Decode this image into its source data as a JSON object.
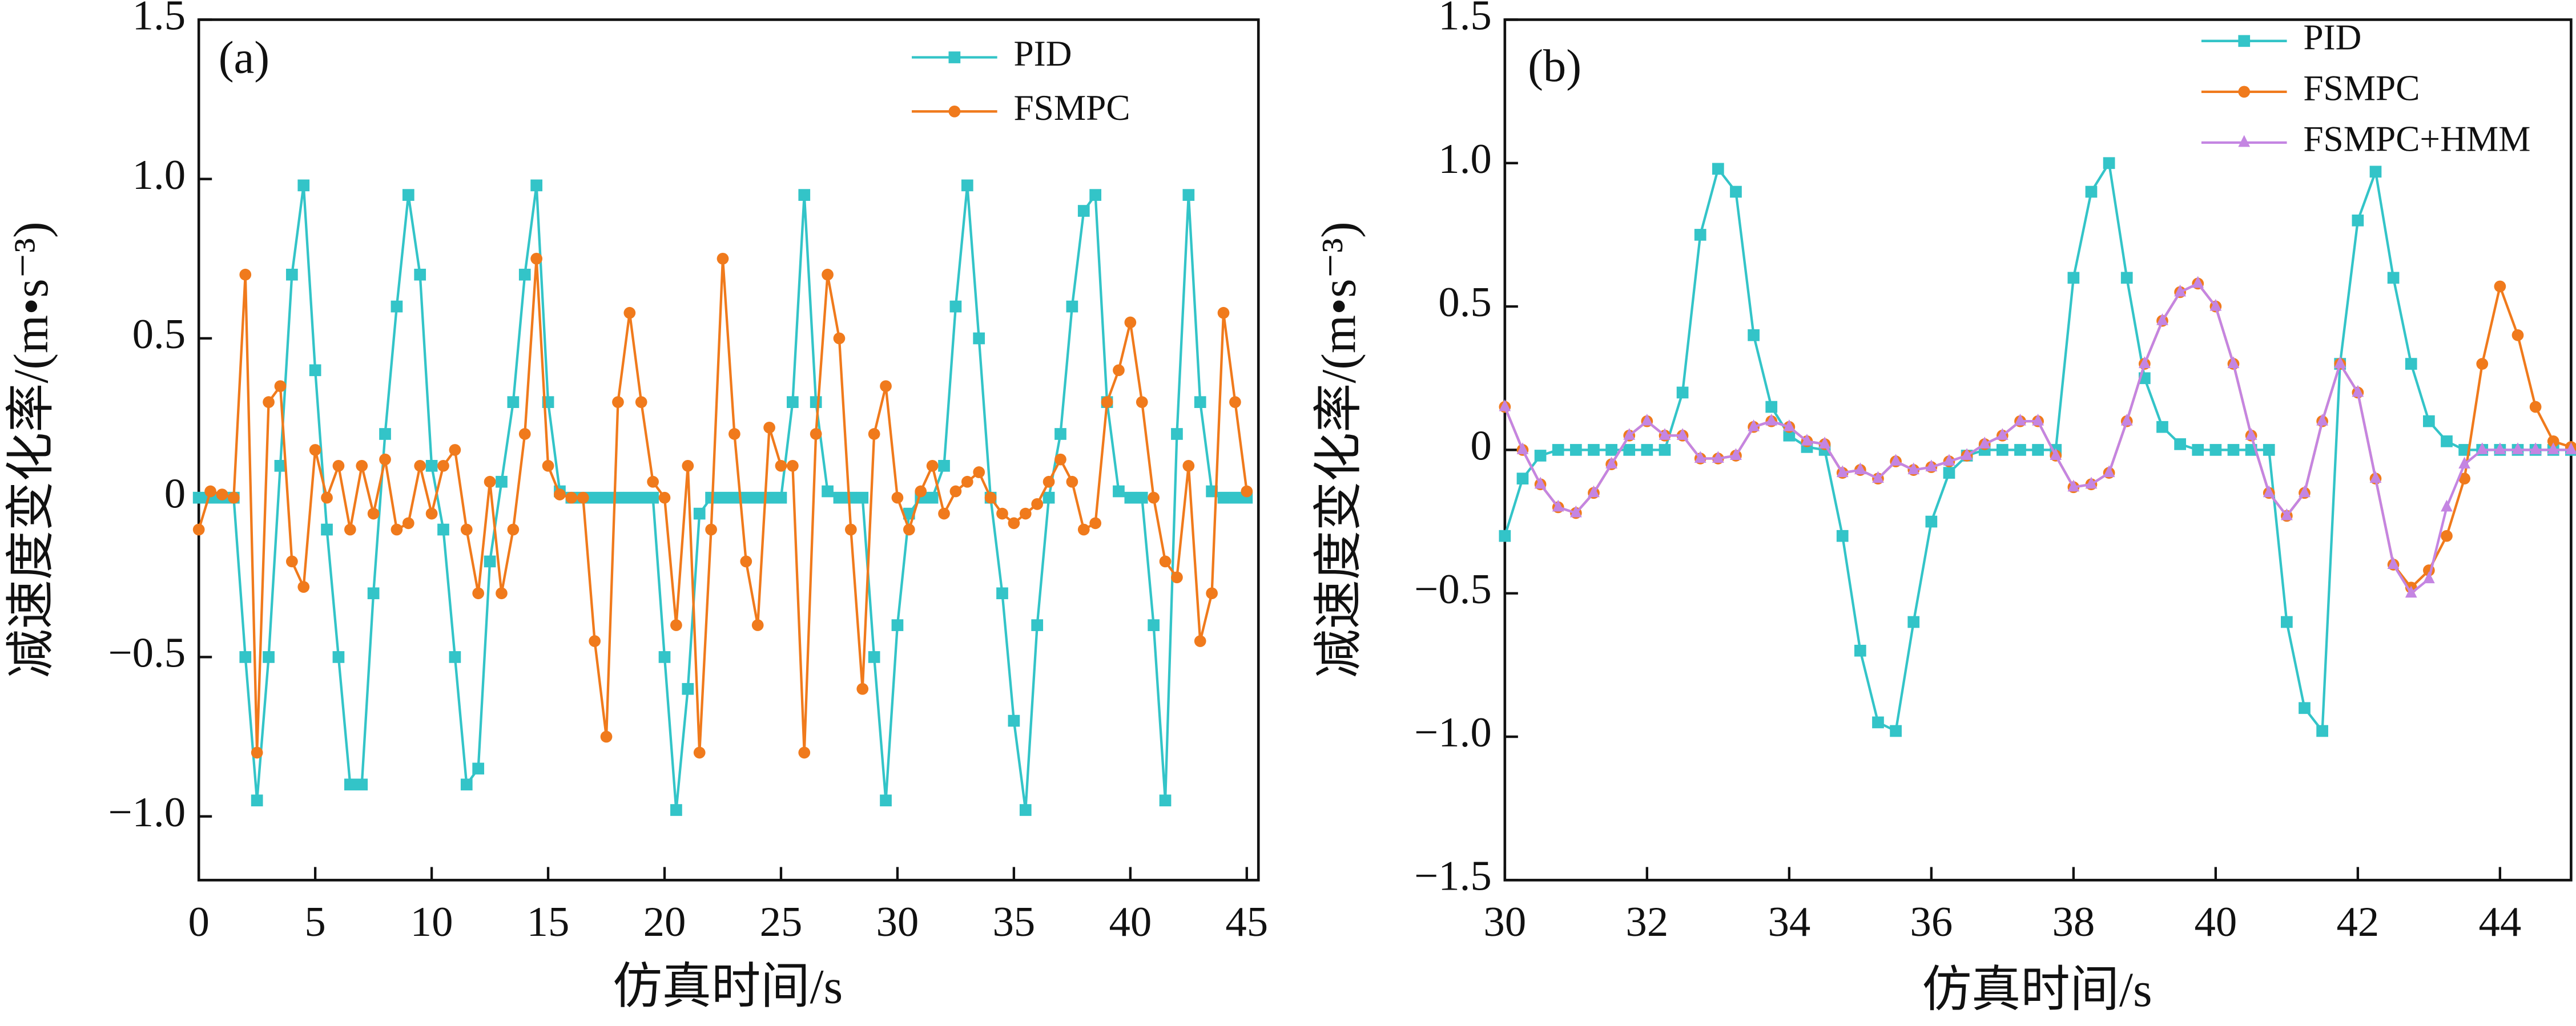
{
  "chart_data": [
    {
      "type": "line",
      "annotation": "(a)",
      "x_label": "仿真时间/s",
      "y_label": "减速度变化率/(m•s⁻³)",
      "x": [
        0,
        0.5,
        1,
        1.5,
        2,
        2.5,
        3,
        3.5,
        4,
        4.5,
        5,
        5.5,
        6,
        6.5,
        7,
        7.5,
        8,
        8.5,
        9,
        9.5,
        10,
        10.5,
        11,
        11.5,
        12,
        12.5,
        13,
        13.5,
        14,
        14.5,
        15,
        15.5,
        16,
        16.5,
        17,
        17.5,
        18,
        18.5,
        19,
        19.5,
        20,
        20.5,
        21,
        21.5,
        22,
        22.5,
        23,
        23.5,
        24,
        24.5,
        25,
        25.5,
        26,
        26.5,
        27,
        27.5,
        28,
        28.5,
        29,
        29.5,
        30,
        30.5,
        31,
        31.5,
        32,
        32.5,
        33,
        33.5,
        34,
        34.5,
        35,
        35.5,
        36,
        36.5,
        37,
        37.5,
        38,
        38.5,
        39,
        39.5,
        40,
        40.5,
        41,
        41.5,
        42,
        42.5,
        43,
        43.5,
        44,
        44.5,
        45
      ],
      "series": [
        {
          "name": "PID",
          "color": "#33c4c8",
          "marker": "square",
          "values": [
            0,
            0,
            0,
            0,
            -0.5,
            -0.95,
            -0.5,
            0.1,
            0.7,
            0.98,
            0.4,
            -0.1,
            -0.5,
            -0.9,
            -0.9,
            -0.3,
            0.2,
            0.6,
            0.95,
            0.7,
            0.1,
            -0.1,
            -0.5,
            -0.9,
            -0.85,
            -0.2,
            0.05,
            0.3,
            0.7,
            0.98,
            0.3,
            0.02,
            0,
            0,
            0,
            0,
            0,
            0,
            0,
            0,
            -0.5,
            -0.98,
            -0.6,
            -0.05,
            0,
            0,
            0,
            0,
            0,
            0,
            0,
            0.3,
            0.95,
            0.3,
            0.02,
            0,
            0,
            0,
            -0.5,
            -0.95,
            -0.4,
            -0.05,
            0,
            0,
            0.1,
            0.6,
            0.98,
            0.5,
            0,
            -0.3,
            -0.7,
            -0.98,
            -0.4,
            0,
            0.2,
            0.6,
            0.9,
            0.95,
            0.3,
            0.02,
            0,
            0,
            -0.4,
            -0.95,
            0.2,
            0.95,
            0.3,
            0.02,
            0,
            0,
            0
          ]
        },
        {
          "name": "FSMPC",
          "color": "#f07a1c",
          "marker": "circle",
          "values": [
            -0.1,
            0.02,
            0.01,
            0,
            0.7,
            -0.8,
            0.3,
            0.35,
            -0.2,
            -0.28,
            0.15,
            0,
            0.1,
            -0.1,
            0.1,
            -0.05,
            0.12,
            -0.1,
            -0.08,
            0.1,
            -0.05,
            0.1,
            0.15,
            -0.1,
            -0.3,
            0.05,
            -0.3,
            -0.1,
            0.2,
            0.75,
            0.1,
            0.01,
            0,
            0,
            -0.45,
            -0.75,
            0.3,
            0.58,
            0.3,
            0.05,
            0,
            -0.4,
            0.1,
            -0.8,
            -0.1,
            0.75,
            0.2,
            -0.2,
            -0.4,
            0.22,
            0.1,
            0.1,
            -0.8,
            0.2,
            0.7,
            0.5,
            -0.1,
            -0.6,
            0.2,
            0.35,
            0,
            -0.1,
            0.02,
            0.1,
            -0.05,
            0.02,
            0.05,
            0.08,
            0,
            -0.05,
            -0.08,
            -0.05,
            -0.02,
            0.05,
            0.12,
            0.05,
            -0.1,
            -0.08,
            0.3,
            0.4,
            0.55,
            0.3,
            0,
            -0.2,
            -0.25,
            0.1,
            -0.45,
            -0.3,
            0.58,
            0.3,
            0.02
          ]
        }
      ],
      "xlim": [
        0,
        45.5
      ],
      "xticks": [
        0,
        5,
        10,
        15,
        20,
        25,
        30,
        35,
        40,
        45
      ],
      "ylim": [
        -1.2,
        1.5
      ],
      "yticks": [
        {
          "value": -1,
          "label": "−1.0"
        },
        {
          "value": -0.5,
          "label": "−0.5"
        },
        0,
        0.5,
        {
          "value": 1,
          "label": "1.0"
        },
        1.5
      ]
    },
    {
      "type": "line",
      "annotation": "(b)",
      "x_label": "仿真时间/s",
      "y_label": "减速度变化率/(m•s⁻³)",
      "x": [
        30,
        30.25,
        30.5,
        30.75,
        31,
        31.25,
        31.5,
        31.75,
        32,
        32.25,
        32.5,
        32.75,
        33,
        33.25,
        33.5,
        33.75,
        34,
        34.25,
        34.5,
        34.75,
        35,
        35.25,
        35.5,
        35.75,
        36,
        36.25,
        36.5,
        36.75,
        37,
        37.25,
        37.5,
        37.75,
        38,
        38.25,
        38.5,
        38.75,
        39,
        39.25,
        39.5,
        39.75,
        40,
        40.25,
        40.5,
        40.75,
        41,
        41.25,
        41.5,
        41.75,
        42,
        42.25,
        42.5,
        42.75,
        43,
        43.25,
        43.5,
        43.75,
        44,
        44.25,
        44.5,
        44.75,
        45
      ],
      "series": [
        {
          "name": "PID",
          "color": "#33c4c8",
          "marker": "square",
          "values": [
            -0.3,
            -0.1,
            -0.02,
            0,
            0,
            0,
            0,
            0,
            0,
            0,
            0.2,
            0.75,
            0.98,
            0.9,
            0.4,
            0.15,
            0.05,
            0.01,
            0,
            -0.3,
            -0.7,
            -0.95,
            -0.98,
            -0.6,
            -0.25,
            -0.08,
            -0.02,
            0,
            0,
            0,
            0,
            0,
            0.6,
            0.9,
            1.0,
            0.6,
            0.25,
            0.08,
            0.02,
            0,
            0,
            0,
            0,
            0,
            -0.6,
            -0.9,
            -0.98,
            0.3,
            0.8,
            0.97,
            0.6,
            0.3,
            0.1,
            0.03,
            0,
            0,
            0,
            0,
            0,
            0,
            0
          ]
        },
        {
          "name": "FSMPC",
          "color": "#f07a1c",
          "marker": "circle",
          "values": [
            0.15,
            0,
            -0.12,
            -0.2,
            -0.22,
            -0.15,
            -0.05,
            0.05,
            0.1,
            0.05,
            0.05,
            -0.03,
            -0.03,
            -0.02,
            0.08,
            0.1,
            0.08,
            0.03,
            0.02,
            -0.08,
            -0.07,
            -0.1,
            -0.04,
            -0.07,
            -0.06,
            -0.04,
            -0.02,
            0.02,
            0.05,
            0.1,
            0.1,
            -0.02,
            -0.13,
            -0.12,
            -0.08,
            0.1,
            0.3,
            0.45,
            0.55,
            0.58,
            0.5,
            0.3,
            0.05,
            -0.15,
            -0.23,
            -0.15,
            0.1,
            0.3,
            0.2,
            -0.1,
            -0.4,
            -0.48,
            -0.42,
            -0.3,
            -0.1,
            0.3,
            0.57,
            0.4,
            0.15,
            0.03,
            0.01
          ]
        },
        {
          "name": "FSMPC+HMM",
          "color": "#c485e2",
          "marker": "triangle",
          "values": [
            0.15,
            0,
            -0.12,
            -0.2,
            -0.22,
            -0.15,
            -0.05,
            0.05,
            0.1,
            0.05,
            0.05,
            -0.03,
            -0.03,
            -0.02,
            0.08,
            0.1,
            0.08,
            0.03,
            0.02,
            -0.08,
            -0.07,
            -0.1,
            -0.04,
            -0.07,
            -0.06,
            -0.04,
            -0.02,
            0.02,
            0.05,
            0.1,
            0.1,
            -0.02,
            -0.13,
            -0.12,
            -0.08,
            0.1,
            0.3,
            0.45,
            0.55,
            0.58,
            0.5,
            0.3,
            0.05,
            -0.15,
            -0.23,
            -0.15,
            0.1,
            0.3,
            0.2,
            -0.1,
            -0.4,
            -0.5,
            -0.45,
            -0.2,
            -0.05,
            0,
            0,
            0,
            0,
            0,
            0
          ]
        }
      ],
      "xlim": [
        30,
        45
      ],
      "xticks": [
        30,
        32,
        34,
        36,
        38,
        40,
        42,
        44
      ],
      "ylim": [
        -1.5,
        1.5
      ],
      "yticks": [
        {
          "value": -1.5,
          "label": "−1.5"
        },
        {
          "value": -1,
          "label": "−1.0"
        },
        {
          "value": -0.5,
          "label": "−0.5"
        },
        0,
        0.5,
        {
          "value": 1,
          "label": "1.0"
        },
        1.5
      ]
    }
  ]
}
